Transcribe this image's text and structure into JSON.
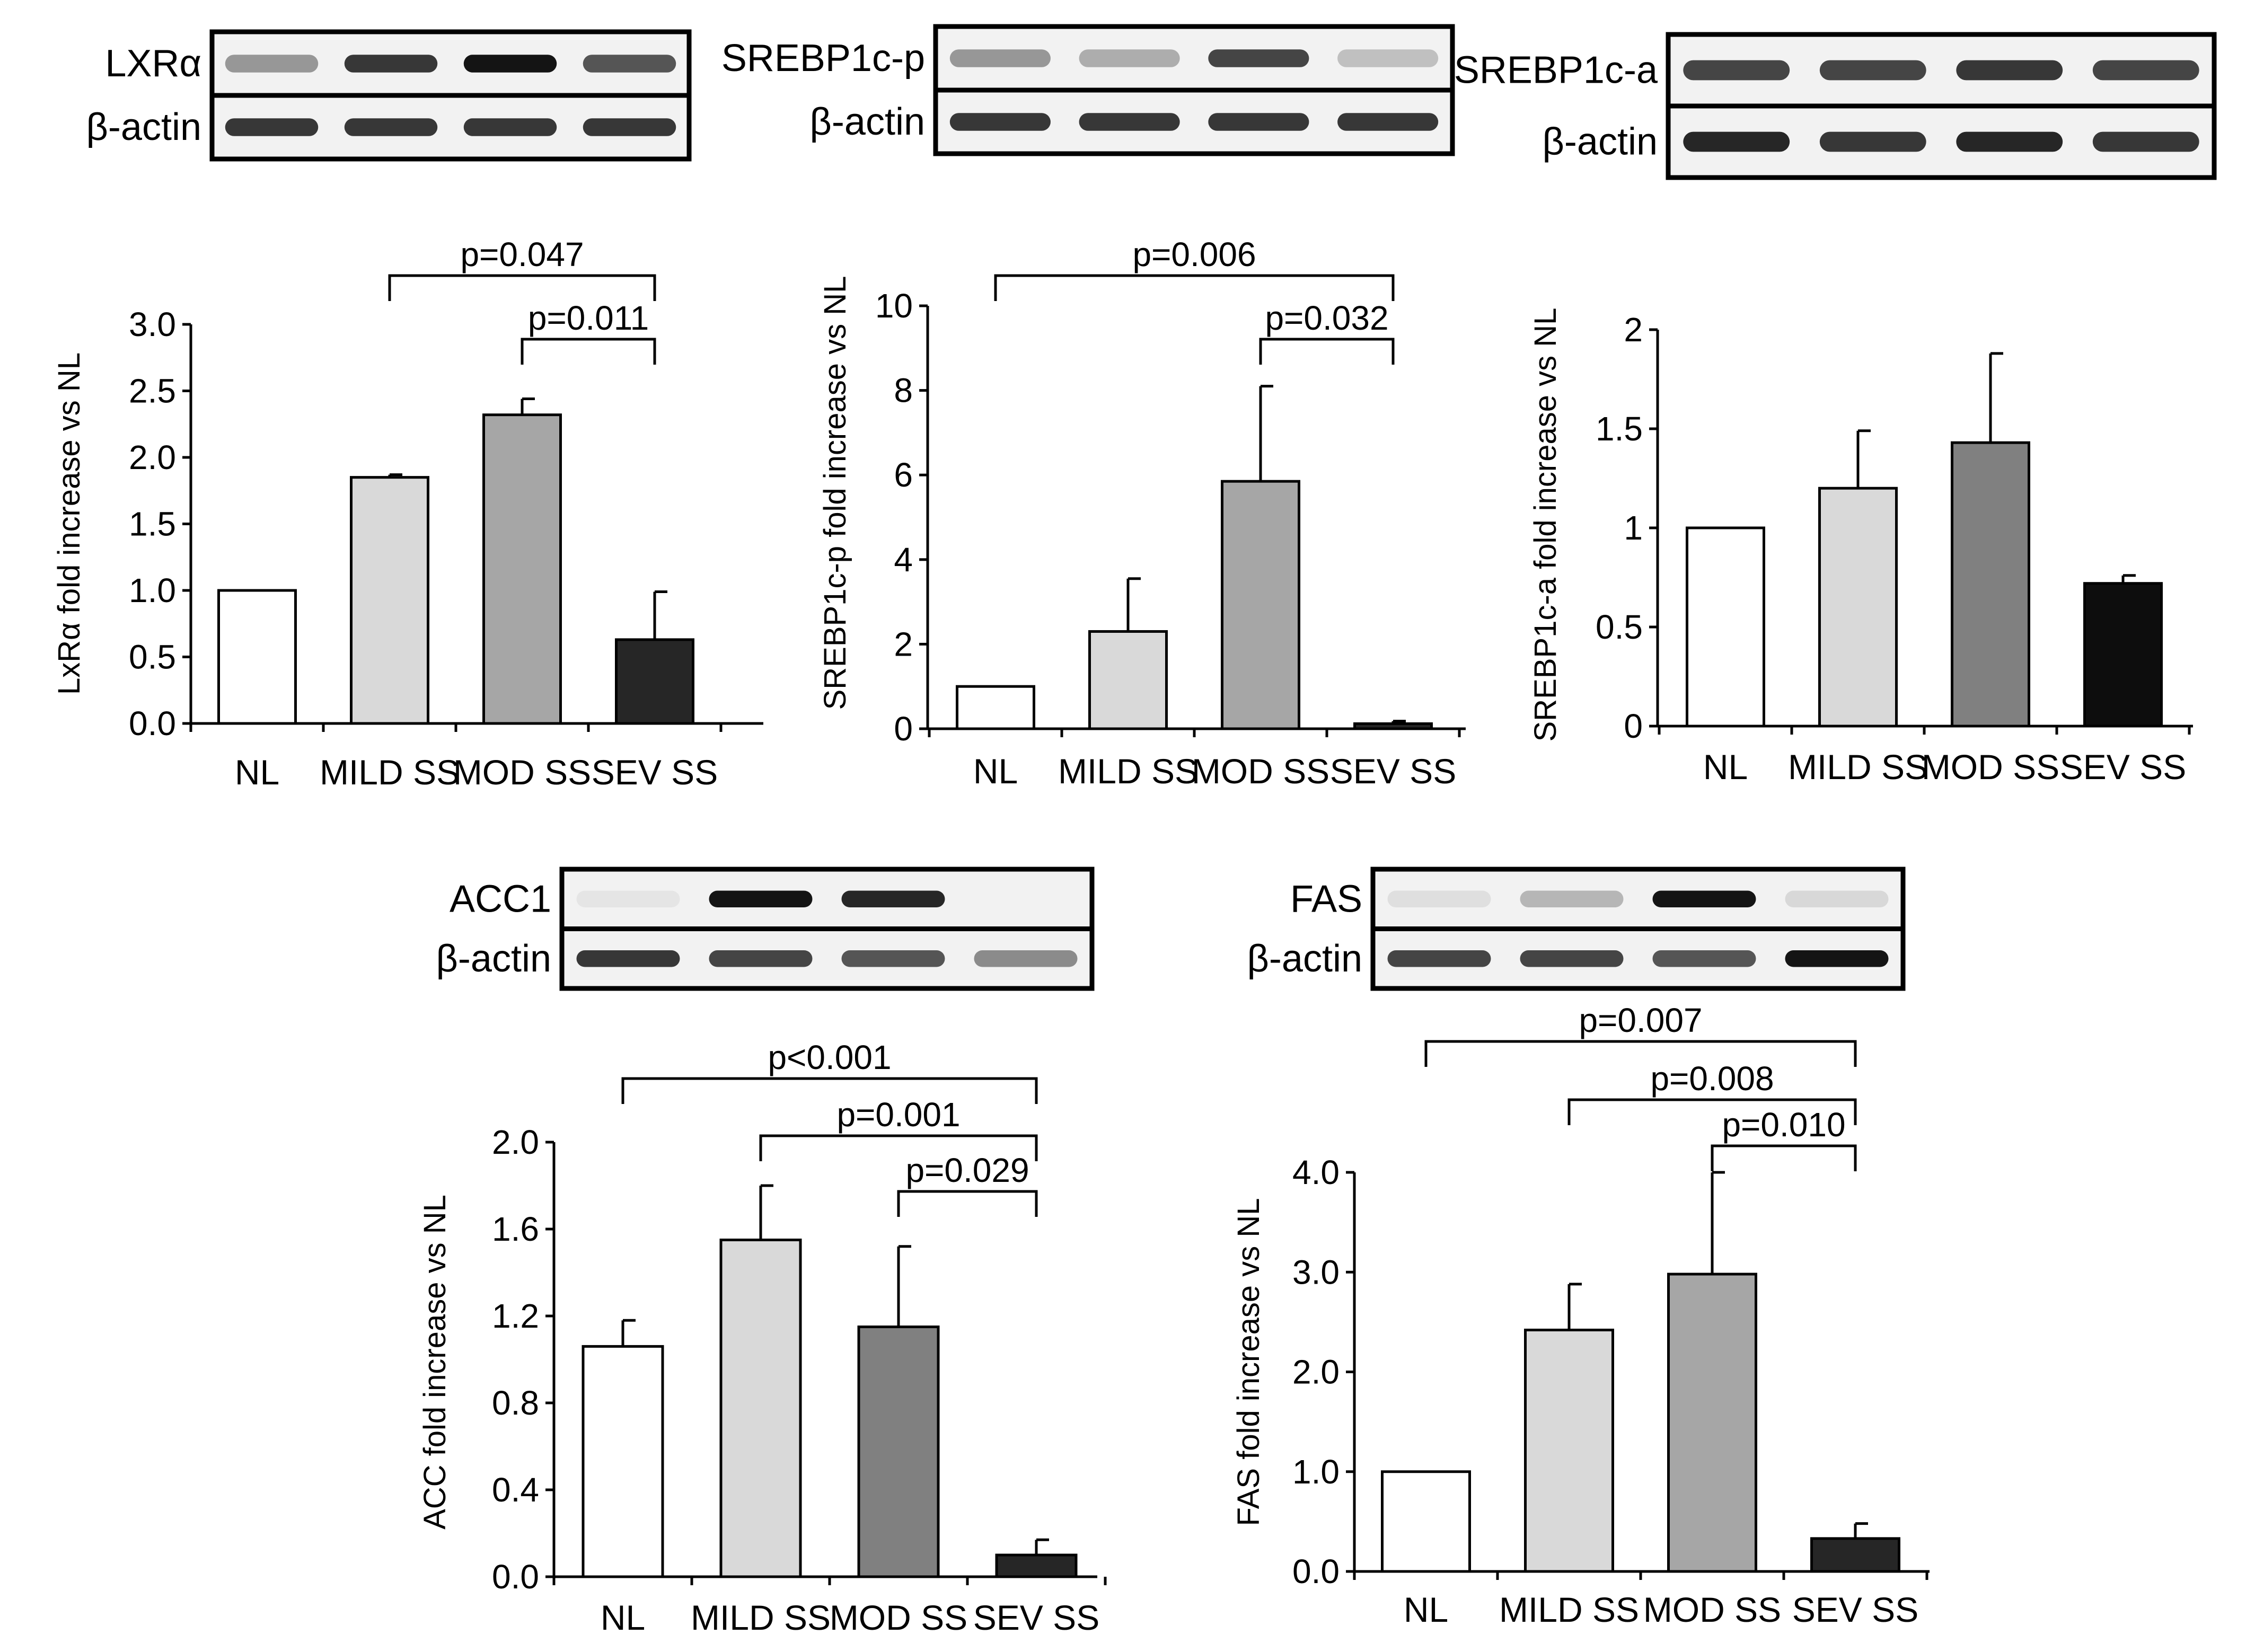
{
  "panels": [
    {
      "id": "lxr",
      "blot": {
        "protein": "LXRα",
        "loading": "β-actin",
        "bands": [
          [
            0.55,
            0.9,
            1.0,
            0.8
          ],
          [
            0.9,
            0.9,
            0.9,
            0.9
          ]
        ]
      },
      "chart_data": {
        "type": "bar",
        "categories": [
          "NL",
          "MILD SS",
          "MOD SS",
          "SEV SS"
        ],
        "values": [
          1.0,
          1.85,
          2.32,
          0.63
        ],
        "errors": [
          0,
          0.02,
          0.12,
          0.36
        ],
        "colors": [
          "#ffffff",
          "#d9d9d9",
          "#a6a6a6",
          "#262626"
        ],
        "ylabel": "LxRα  fold increase vs NL",
        "ylim": [
          0,
          3.0
        ],
        "ticks": [
          "0.0",
          "0.5",
          "1.0",
          "1.5",
          "2.0",
          "2.5",
          "3.0"
        ],
        "significance": [
          {
            "from": 1,
            "to": 3,
            "label": "p=0.047"
          },
          {
            "from": 2,
            "to": 3,
            "label": "p=0.011"
          }
        ]
      }
    },
    {
      "id": "srebp_p",
      "blot": {
        "protein": "SREBP1c-p",
        "loading": "β-actin",
        "bands": [
          [
            0.55,
            0.45,
            0.85,
            0.35
          ],
          [
            0.9,
            0.9,
            0.9,
            0.9
          ]
        ]
      },
      "chart_data": {
        "type": "bar",
        "categories": [
          "NL",
          "MILD SS",
          "MOD SS",
          "SEV SS"
        ],
        "values": [
          1.0,
          2.3,
          5.85,
          0.12
        ],
        "errors": [
          0,
          1.25,
          2.25,
          0.06
        ],
        "colors": [
          "#ffffff",
          "#d9d9d9",
          "#a6a6a6",
          "#262626"
        ],
        "ylabel": "SREBP1c-p  fold increase vs NL",
        "ylim": [
          0,
          10
        ],
        "ticks": [
          "0",
          "2",
          "4",
          "6",
          "8",
          "10"
        ],
        "significance": [
          {
            "from": 0,
            "to": 3,
            "label": "p=0.006"
          },
          {
            "from": 2,
            "to": 3,
            "label": "p=0.032"
          }
        ]
      }
    },
    {
      "id": "srebp_a",
      "blot": {
        "protein": "SREBP1c-a",
        "loading": "β-actin",
        "bands": [
          [
            0.85,
            0.85,
            0.9,
            0.85
          ],
          [
            0.95,
            0.9,
            0.95,
            0.9
          ]
        ]
      },
      "chart_data": {
        "type": "bar",
        "categories": [
          "NL",
          "MILD SS",
          "MOD SS",
          "SEV SS"
        ],
        "values": [
          1.0,
          1.2,
          1.43,
          0.72
        ],
        "errors": [
          0,
          0.29,
          0.45,
          0.04
        ],
        "colors": [
          "#ffffff",
          "#d9d9d9",
          "#808080",
          "#0d0d0d"
        ],
        "ylabel": "SREBP1c-a  fold increase vs NL",
        "ylim": [
          0,
          2
        ],
        "ticks": [
          "0",
          "0.5",
          "1",
          "1.5",
          "2"
        ],
        "significance": []
      }
    },
    {
      "id": "acc",
      "blot": {
        "protein": "ACC1",
        "loading": "β-actin",
        "bands": [
          [
            0.1,
            1.0,
            0.95,
            0.0
          ],
          [
            0.9,
            0.85,
            0.8,
            0.6
          ]
        ]
      },
      "chart_data": {
        "type": "bar",
        "categories": [
          "NL",
          "MILD SS",
          "MOD SS",
          "SEV SS"
        ],
        "values": [
          1.06,
          1.55,
          1.15,
          0.1
        ],
        "errors": [
          0.12,
          0.25,
          0.37,
          0.07
        ],
        "colors": [
          "#ffffff",
          "#d9d9d9",
          "#808080",
          "#262626"
        ],
        "ylabel": "ACC  fold increase vs NL",
        "ylim": [
          0,
          2.0
        ],
        "ticks": [
          "0.0",
          "0.4",
          "0.8",
          "1.2",
          "1.6",
          "2.0"
        ],
        "significance": [
          {
            "from": 0,
            "to": 3,
            "label": "p<0.001"
          },
          {
            "from": 1,
            "to": 3,
            "label": "p=0.001"
          },
          {
            "from": 2,
            "to": 3,
            "label": "p=0.029"
          }
        ]
      }
    },
    {
      "id": "fas",
      "blot": {
        "protein": "FAS",
        "loading": "β-actin",
        "bands": [
          [
            0.15,
            0.4,
            1.0,
            0.2
          ],
          [
            0.85,
            0.85,
            0.8,
            1.0
          ]
        ]
      },
      "chart_data": {
        "type": "bar",
        "categories": [
          "NL",
          "MILD SS",
          "MOD SS",
          "SEV SS"
        ],
        "values": [
          1.0,
          2.42,
          2.98,
          0.33
        ],
        "errors": [
          0,
          0.46,
          1.02,
          0.15
        ],
        "colors": [
          "#ffffff",
          "#d9d9d9",
          "#a6a6a6",
          "#262626"
        ],
        "ylabel": "FAS  fold increase vs NL",
        "ylim": [
          0,
          4.0
        ],
        "ticks": [
          "0.0",
          "1.0",
          "2.0",
          "3.0",
          "4.0"
        ],
        "significance": [
          {
            "from": 0,
            "to": 3,
            "label": "p=0.007"
          },
          {
            "from": 1,
            "to": 3,
            "label": "p=0.008"
          },
          {
            "from": 2,
            "to": 3,
            "label": "p=0.010"
          }
        ]
      }
    }
  ]
}
